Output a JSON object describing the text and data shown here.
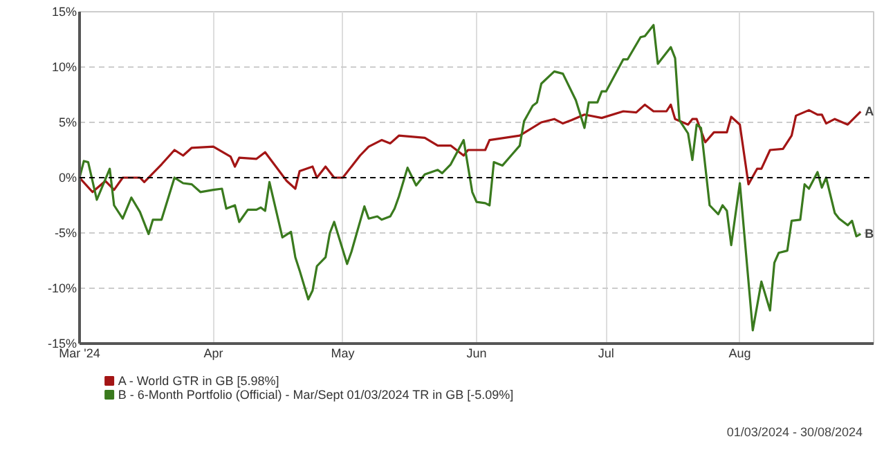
{
  "chart_data": {
    "type": "line",
    "xlim": [
      "2024-03-01",
      "2024-09-01"
    ],
    "ylim": [
      -15,
      15
    ],
    "xticks": [
      {
        "value": "2024-03-01",
        "label": "Mar '24"
      },
      {
        "value": "2024-04-01",
        "label": "Apr"
      },
      {
        "value": "2024-05-01",
        "label": "May"
      },
      {
        "value": "2024-06-01",
        "label": "Jun"
      },
      {
        "value": "2024-07-01",
        "label": "Jul"
      },
      {
        "value": "2024-08-01",
        "label": "Aug"
      }
    ],
    "yticks": [
      {
        "value": -15,
        "label": "-15%"
      },
      {
        "value": -10,
        "label": "-10%"
      },
      {
        "value": -5,
        "label": "-5%"
      },
      {
        "value": 0,
        "label": "0%"
      },
      {
        "value": 5,
        "label": "5%"
      },
      {
        "value": 10,
        "label": "10%"
      },
      {
        "value": 15,
        "label": "15%"
      }
    ],
    "grid": true,
    "legend": "bottom left",
    "line_style": "solid",
    "ref_lines": [
      {
        "axis": "y",
        "value": 0,
        "color": "#000000",
        "line_style": "dashed"
      }
    ],
    "annotations": [
      {
        "text": "A",
        "x": "2024-08-29",
        "y": 5.98
      },
      {
        "text": "B",
        "x": "2024-08-29",
        "y": -5.09
      },
      "01/03/2024 - 30/08/2024"
    ],
    "series": [
      {
        "name": "A - World GTR in GB [5.98%]",
        "color": "#a31515",
        "x": [
          "2024-03-01",
          "2024-03-04",
          "2024-03-07",
          "2024-03-09",
          "2024-03-11",
          "2024-03-15",
          "2024-03-16",
          "2024-03-20",
          "2024-03-23",
          "2024-03-25",
          "2024-03-27",
          "2024-04-01",
          "2024-04-05",
          "2024-04-06",
          "2024-04-07",
          "2024-04-11",
          "2024-04-13",
          "2024-04-18",
          "2024-04-20",
          "2024-04-21",
          "2024-04-24",
          "2024-04-25",
          "2024-04-27",
          "2024-04-29",
          "2024-05-01",
          "2024-05-05",
          "2024-05-07",
          "2024-05-10",
          "2024-05-12",
          "2024-05-14",
          "2024-05-20",
          "2024-05-23",
          "2024-05-26",
          "2024-05-29",
          "2024-05-30",
          "2024-06-03",
          "2024-06-04",
          "2024-06-11",
          "2024-06-16",
          "2024-06-19",
          "2024-06-21",
          "2024-06-23",
          "2024-06-26",
          "2024-06-30",
          "2024-07-05",
          "2024-07-08",
          "2024-07-10",
          "2024-07-12",
          "2024-07-15",
          "2024-07-16",
          "2024-07-17",
          "2024-07-20",
          "2024-07-21",
          "2024-07-22",
          "2024-07-24",
          "2024-07-26",
          "2024-07-29",
          "2024-07-30",
          "2024-08-01",
          "2024-08-03",
          "2024-08-05",
          "2024-08-06",
          "2024-08-08",
          "2024-08-11",
          "2024-08-13",
          "2024-08-14",
          "2024-08-17",
          "2024-08-19",
          "2024-08-20",
          "2024-08-21",
          "2024-08-23",
          "2024-08-26",
          "2024-08-29"
        ],
        "values": [
          0,
          -1.3,
          -0.3,
          -1.1,
          0,
          0,
          -0.4,
          1.2,
          2.5,
          2,
          2.7,
          2.8,
          1.9,
          1,
          1.8,
          1.7,
          2.3,
          -0.3,
          -1,
          0.6,
          1,
          0,
          1,
          0,
          0,
          2,
          2.8,
          3.4,
          3.1,
          3.8,
          3.6,
          2.9,
          2.9,
          2,
          2.5,
          2.5,
          3.4,
          3.8,
          5,
          5.3,
          4.9,
          5.2,
          5.7,
          5.4,
          6,
          5.9,
          6.6,
          6,
          6,
          6.6,
          5.3,
          4.8,
          5.3,
          5.3,
          3.2,
          4.1,
          4.1,
          5.5,
          4.8,
          -0.6,
          0.8,
          0.8,
          2.5,
          2.6,
          3.8,
          5.6,
          6.1,
          5.7,
          5.7,
          4.9,
          5.3,
          4.8,
          5.98
        ]
      },
      {
        "name": "B - 6-Month Portfolio (Official) - Mar/Sept 01/03/2024 TR in GB [-5.09%]",
        "color": "#3a7a1e",
        "x": [
          "2024-03-01",
          "2024-03-02",
          "2024-03-03",
          "2024-03-05",
          "2024-03-08",
          "2024-03-09",
          "2024-03-11",
          "2024-03-13",
          "2024-03-15",
          "2024-03-17",
          "2024-03-18",
          "2024-03-20",
          "2024-03-23",
          "2024-03-25",
          "2024-03-27",
          "2024-03-29",
          "2024-04-01",
          "2024-04-03",
          "2024-04-04",
          "2024-04-06",
          "2024-04-07",
          "2024-04-09",
          "2024-04-11",
          "2024-04-12",
          "2024-04-13",
          "2024-04-14",
          "2024-04-17",
          "2024-04-19",
          "2024-04-20",
          "2024-04-21",
          "2024-04-23",
          "2024-04-24",
          "2024-04-25",
          "2024-04-27",
          "2024-04-28",
          "2024-04-29",
          "2024-05-02",
          "2024-05-03",
          "2024-05-06",
          "2024-05-07",
          "2024-05-09",
          "2024-05-10",
          "2024-05-12",
          "2024-05-13",
          "2024-05-14",
          "2024-05-16",
          "2024-05-18",
          "2024-05-20",
          "2024-05-23",
          "2024-05-24",
          "2024-05-26",
          "2024-05-29",
          "2024-05-31",
          "2024-06-01",
          "2024-06-03",
          "2024-06-04",
          "2024-06-05",
          "2024-06-07",
          "2024-06-09",
          "2024-06-11",
          "2024-06-12",
          "2024-06-14",
          "2024-06-15",
          "2024-06-16",
          "2024-06-19",
          "2024-06-21",
          "2024-06-24",
          "2024-06-26",
          "2024-06-27",
          "2024-06-29",
          "2024-06-30",
          "2024-07-01",
          "2024-07-05",
          "2024-07-06",
          "2024-07-09",
          "2024-07-10",
          "2024-07-12",
          "2024-07-13",
          "2024-07-16",
          "2024-07-17",
          "2024-07-18",
          "2024-07-20",
          "2024-07-21",
          "2024-07-22",
          "2024-07-23",
          "2024-07-25",
          "2024-07-27",
          "2024-07-28",
          "2024-07-29",
          "2024-07-30",
          "2024-08-01",
          "2024-08-04",
          "2024-08-06",
          "2024-08-08",
          "2024-08-09",
          "2024-08-10",
          "2024-08-12",
          "2024-08-13",
          "2024-08-15",
          "2024-08-16",
          "2024-08-17",
          "2024-08-19",
          "2024-08-20",
          "2024-08-21",
          "2024-08-23",
          "2024-08-24",
          "2024-08-26",
          "2024-08-27",
          "2024-08-28",
          "2024-08-29"
        ],
        "values": [
          0,
          1.5,
          1.4,
          -2,
          0.8,
          -2.5,
          -3.7,
          -1.8,
          -3.1,
          -5.1,
          -3.8,
          -3.8,
          0,
          -0.5,
          -0.6,
          -1.3,
          -1.1,
          -1,
          -2.8,
          -2.5,
          -4,
          -2.9,
          -2.9,
          -2.7,
          -3,
          -0.4,
          -5.4,
          -4.9,
          -7.2,
          -8.4,
          -11,
          -10.2,
          -8,
          -7.2,
          -5,
          -4,
          -7.8,
          -6.7,
          -2.6,
          -3.7,
          -3.5,
          -3.8,
          -3.5,
          -2.8,
          -1.7,
          0.9,
          -0.7,
          0.3,
          0.7,
          0.4,
          1.2,
          3.4,
          -1.3,
          -2.2,
          -2.3,
          -2.5,
          1.4,
          1.1,
          2,
          2.9,
          5.1,
          6.5,
          6.8,
          8.5,
          9.6,
          9.4,
          7,
          4.5,
          6.8,
          6.8,
          7.8,
          7.8,
          10.7,
          10.7,
          12.7,
          12.8,
          13.8,
          10.3,
          11.8,
          10.8,
          5.2,
          4,
          1.6,
          4.8,
          4.5,
          -2.5,
          -3.3,
          -2.5,
          -3,
          -6.1,
          -0.5,
          -13.8,
          -9.4,
          -12,
          -7.7,
          -6.8,
          -6.6,
          -3.9,
          -3.8,
          -0.6,
          -1,
          0.5,
          -0.9,
          0,
          -3.2,
          -3.7,
          -4.3,
          -3.9,
          -5.3,
          -5.09
        ]
      }
    ]
  }
}
